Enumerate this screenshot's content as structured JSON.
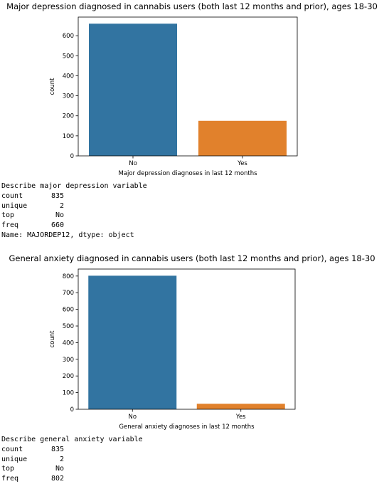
{
  "chart_data": [
    {
      "type": "bar",
      "title": "Major depression diagnosed in cannabis users (both last 12 months and prior), ages 18-30",
      "xlabel": "Major depression diagnoses in last 12 months",
      "ylabel": "count",
      "categories": [
        "No",
        "Yes"
      ],
      "values": [
        660,
        175
      ],
      "colors": [
        "#3274a1",
        "#e1812c"
      ],
      "yticks": [
        0,
        100,
        200,
        300,
        400,
        500,
        600
      ],
      "ylim": [
        0,
        693
      ],
      "grid": false,
      "legend": "none"
    },
    {
      "type": "bar",
      "title": "General anxiety diagnosed in cannabis users (both last 12 months and prior), ages 18-30",
      "xlabel": "General anxiety diagnoses in last 12 months",
      "ylabel": "count",
      "categories": [
        "No",
        "Yes"
      ],
      "values": [
        802,
        33
      ],
      "colors": [
        "#3274a1",
        "#e1812c"
      ],
      "yticks": [
        0,
        100,
        200,
        300,
        400,
        500,
        600,
        700,
        800
      ],
      "ylim": [
        0,
        842
      ],
      "grid": false,
      "legend": "none"
    }
  ],
  "outputs": [
    {
      "header": "Describe major depression variable",
      "rows": [
        {
          "key": "count",
          "value": "835"
        },
        {
          "key": "unique",
          "value": "2"
        },
        {
          "key": "top",
          "value": "No"
        },
        {
          "key": "freq",
          "value": "660"
        }
      ],
      "footer": "Name: MAJORDEP12, dtype: object"
    },
    {
      "header": "Describe general anxiety variable",
      "rows": [
        {
          "key": "count",
          "value": "835"
        },
        {
          "key": "unique",
          "value": "2"
        },
        {
          "key": "top",
          "value": "No"
        },
        {
          "key": "freq",
          "value": "802"
        }
      ]
    }
  ]
}
